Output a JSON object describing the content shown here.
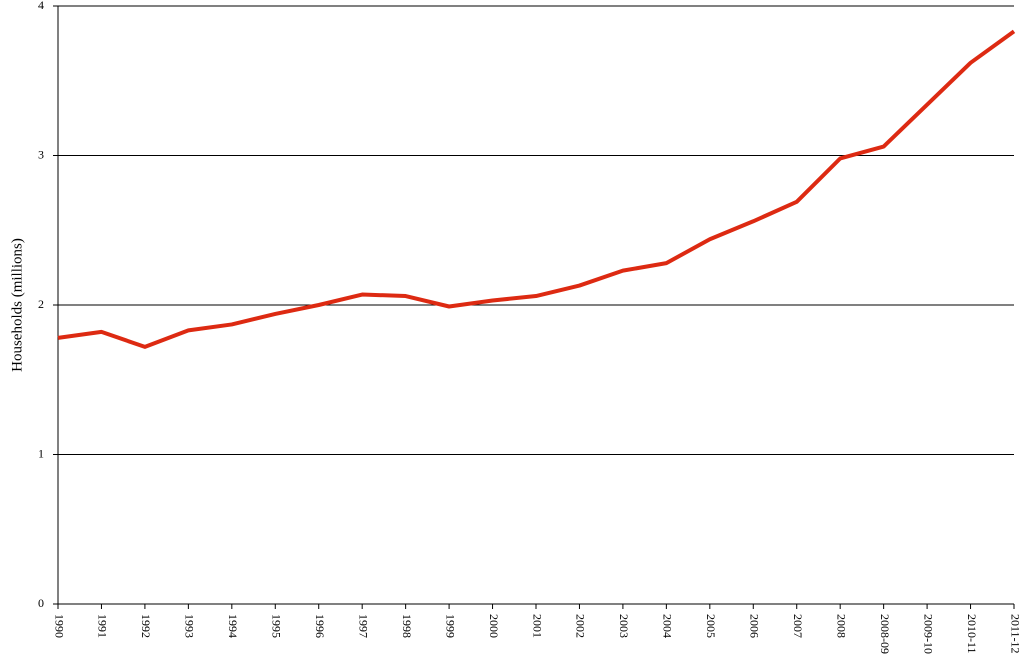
{
  "chart_data": {
    "type": "line",
    "y_label": "Households (millions)",
    "categories": [
      "1990",
      "1991",
      "1992",
      "1993",
      "1994",
      "1995",
      "1996",
      "1997",
      "1998",
      "1999",
      "2000",
      "2001",
      "2002",
      "2003",
      "2004",
      "2005",
      "2006",
      "2007",
      "2008",
      "2008-09",
      "2009-10",
      "2010-11",
      "2011-12"
    ],
    "values": [
      1.78,
      1.82,
      1.72,
      1.83,
      1.87,
      1.94,
      2.0,
      2.07,
      2.06,
      1.99,
      2.03,
      2.06,
      2.13,
      2.23,
      2.28,
      2.44,
      2.56,
      2.69,
      2.98,
      3.06,
      3.34,
      3.62,
      3.83
    ],
    "color": "#dd2a12",
    "ylim": [
      0,
      4
    ],
    "yticks": [
      0,
      1,
      2,
      3,
      4
    ],
    "grid": true
  }
}
